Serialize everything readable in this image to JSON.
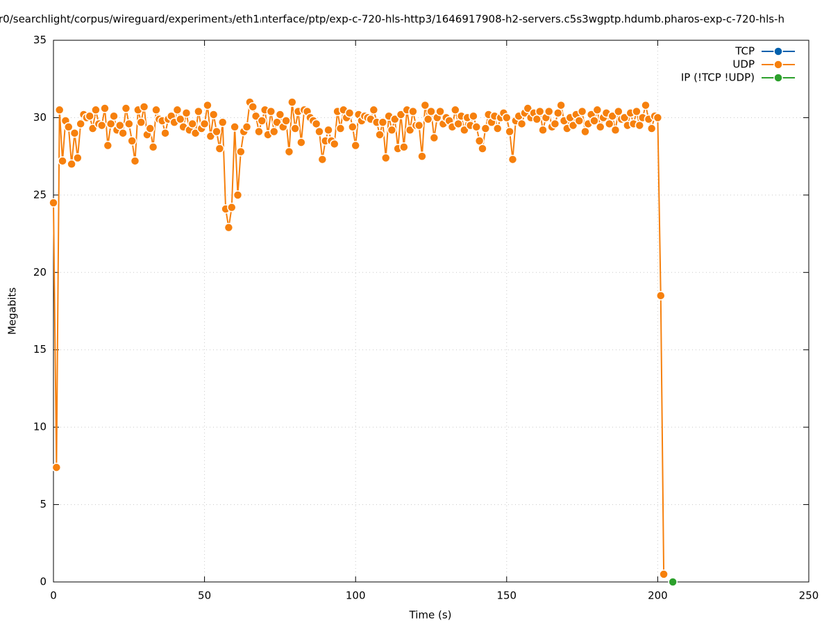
{
  "chart_data": {
    "type": "line",
    "title": "r0/searchlight/corpus/wireguard/experiment₃/eth1ᵢnterface/ptp/exp-c-720-hls-http3/1646917908-h2-servers.c5s3wgptp.hdumb.pharos-exp-c-720-hls-h",
    "x_label": "Time (s)",
    "y_label": "Megabits",
    "xlim": [
      0,
      250
    ],
    "xticks": [
      0,
      50,
      100,
      150,
      200,
      250
    ],
    "ylim": [
      0,
      35
    ],
    "yticks": [
      0,
      5,
      10,
      15,
      20,
      25,
      30,
      35
    ],
    "grid": true,
    "legend": "top-right",
    "series": [
      {
        "name": "TCP",
        "color": "#0060ad",
        "x": [],
        "values": []
      },
      {
        "name": "UDP",
        "color": "#f6800d",
        "x": [
          0,
          1,
          2,
          3,
          4,
          5,
          6,
          7,
          8,
          9,
          10,
          11,
          12,
          13,
          14,
          15,
          16,
          17,
          18,
          19,
          20,
          21,
          22,
          23,
          24,
          25,
          26,
          27,
          28,
          29,
          30,
          31,
          32,
          33,
          34,
          35,
          36,
          37,
          38,
          39,
          40,
          41,
          42,
          43,
          44,
          45,
          46,
          47,
          48,
          49,
          50,
          51,
          52,
          53,
          54,
          55,
          56,
          57,
          58,
          59,
          60,
          61,
          62,
          63,
          64,
          65,
          66,
          67,
          68,
          69,
          70,
          71,
          72,
          73,
          74,
          75,
          76,
          77,
          78,
          79,
          80,
          81,
          82,
          83,
          84,
          85,
          86,
          87,
          88,
          89,
          90,
          91,
          92,
          93,
          94,
          95,
          96,
          97,
          98,
          99,
          100,
          101,
          102,
          103,
          104,
          105,
          106,
          107,
          108,
          109,
          110,
          111,
          112,
          113,
          114,
          115,
          116,
          117,
          118,
          119,
          120,
          121,
          122,
          123,
          124,
          125,
          126,
          127,
          128,
          129,
          130,
          131,
          132,
          133,
          134,
          135,
          136,
          137,
          138,
          139,
          140,
          141,
          142,
          143,
          144,
          145,
          146,
          147,
          148,
          149,
          150,
          151,
          152,
          153,
          154,
          155,
          156,
          157,
          158,
          159,
          160,
          161,
          162,
          163,
          164,
          165,
          166,
          167,
          168,
          169,
          170,
          171,
          172,
          173,
          174,
          175,
          176,
          177,
          178,
          179,
          180,
          181,
          182,
          183,
          184,
          185,
          186,
          187,
          188,
          189,
          190,
          191,
          192,
          193,
          194,
          195,
          196,
          197,
          198,
          199,
          200,
          201,
          202
        ],
        "values": [
          24.5,
          7.4,
          30.5,
          27.2,
          29.8,
          29.4,
          27.0,
          29.0,
          27.4,
          29.6,
          30.2,
          30.0,
          30.1,
          29.3,
          30.5,
          29.6,
          29.5,
          30.6,
          28.2,
          29.6,
          30.1,
          29.2,
          29.5,
          29.0,
          30.6,
          29.6,
          28.5,
          27.2,
          30.5,
          29.7,
          30.7,
          28.9,
          29.3,
          28.1,
          30.5,
          29.9,
          29.8,
          29.0,
          29.9,
          30.1,
          29.7,
          30.5,
          29.9,
          29.4,
          30.3,
          29.2,
          29.6,
          29.0,
          30.4,
          29.3,
          29.6,
          30.8,
          28.8,
          30.2,
          29.1,
          28.0,
          29.7,
          24.1,
          22.9,
          24.2,
          29.4,
          25.0,
          27.8,
          29.1,
          29.4,
          31.0,
          30.7,
          30.1,
          29.1,
          29.8,
          30.5,
          28.9,
          30.4,
          29.1,
          29.7,
          30.2,
          29.4,
          29.8,
          27.8,
          31.0,
          29.3,
          30.4,
          28.4,
          30.5,
          30.4,
          30.0,
          29.8,
          29.6,
          29.1,
          27.3,
          28.5,
          29.2,
          28.5,
          28.3,
          30.4,
          29.3,
          30.5,
          30.0,
          30.3,
          29.4,
          28.2,
          30.2,
          29.8,
          30.1,
          30.0,
          29.9,
          30.5,
          29.7,
          28.9,
          29.7,
          27.4,
          30.1,
          29.2,
          29.9,
          28.0,
          30.2,
          28.1,
          30.5,
          29.2,
          30.4,
          29.5,
          29.5,
          27.5,
          30.8,
          29.9,
          30.4,
          28.7,
          30.0,
          30.4,
          29.6,
          30.0,
          29.8,
          29.4,
          30.5,
          29.6,
          30.1,
          29.2,
          30.0,
          29.5,
          30.1,
          29.4,
          28.5,
          28.0,
          29.3,
          30.2,
          29.7,
          30.1,
          29.3,
          30.0,
          30.3,
          30.0,
          29.1,
          27.3,
          29.8,
          30.1,
          29.6,
          30.3,
          30.6,
          30.0,
          30.3,
          29.9,
          30.4,
          29.2,
          30.0,
          30.4,
          29.4,
          29.6,
          30.3,
          30.8,
          29.8,
          29.3,
          30.0,
          29.5,
          30.2,
          29.8,
          30.4,
          29.1,
          29.6,
          30.2,
          29.8,
          30.5,
          29.4,
          30.0,
          30.3,
          29.6,
          30.1,
          29.2,
          30.4,
          29.9,
          30.0,
          29.5,
          30.3,
          29.6,
          30.4,
          29.5,
          30.0,
          30.8,
          29.9,
          29.3,
          30.1,
          30.0,
          18.5,
          0.5
        ]
      },
      {
        "name": "IP (!TCP  !UDP)",
        "color": "#2ca02c",
        "x": [
          205
        ],
        "values": [
          0
        ]
      }
    ]
  }
}
